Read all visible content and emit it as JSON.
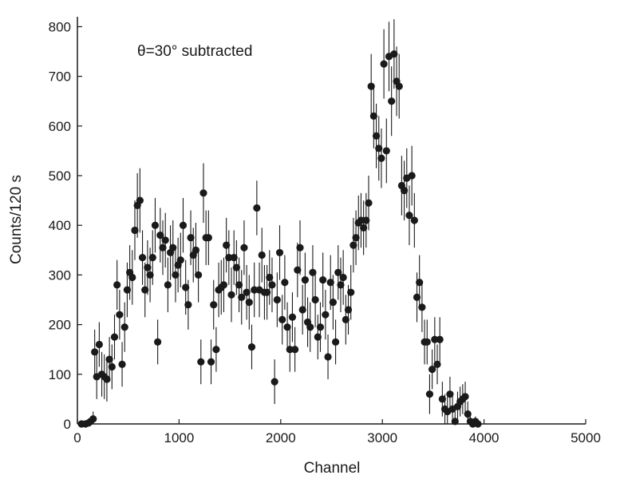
{
  "chart_data": {
    "type": "scatter",
    "annotation": "θ=30° subtracted",
    "xlabel": "Channel",
    "ylabel": "Counts/120 s",
    "xlim": [
      0,
      5000
    ],
    "ylim": [
      0,
      820
    ],
    "xticks": [
      0,
      1000,
      2000,
      3000,
      4000,
      5000
    ],
    "yticks": [
      0,
      100,
      200,
      300,
      400,
      500,
      600,
      700,
      800
    ],
    "grid": false,
    "marker_color": "#1a1a1a",
    "series": [
      {
        "points": [
          [
            40,
            0,
            5
          ],
          [
            80,
            0,
            5
          ],
          [
            110,
            2,
            8
          ],
          [
            130,
            5,
            10
          ],
          [
            155,
            10,
            15
          ],
          [
            170,
            145,
            45
          ],
          [
            190,
            95,
            45
          ],
          [
            215,
            160,
            45
          ],
          [
            240,
            100,
            45
          ],
          [
            265,
            95,
            45
          ],
          [
            290,
            90,
            45
          ],
          [
            315,
            130,
            45
          ],
          [
            340,
            115,
            45
          ],
          [
            365,
            175,
            45
          ],
          [
            390,
            280,
            50
          ],
          [
            415,
            220,
            50
          ],
          [
            440,
            120,
            45
          ],
          [
            465,
            195,
            50
          ],
          [
            490,
            270,
            55
          ],
          [
            515,
            305,
            55
          ],
          [
            540,
            295,
            55
          ],
          [
            565,
            390,
            60
          ],
          [
            590,
            440,
            65
          ],
          [
            615,
            450,
            65
          ],
          [
            640,
            335,
            55
          ],
          [
            665,
            270,
            55
          ],
          [
            690,
            315,
            55
          ],
          [
            715,
            300,
            55
          ],
          [
            740,
            335,
            55
          ],
          [
            765,
            400,
            55
          ],
          [
            790,
            165,
            45
          ],
          [
            815,
            380,
            55
          ],
          [
            840,
            355,
            55
          ],
          [
            865,
            370,
            55
          ],
          [
            890,
            280,
            55
          ],
          [
            915,
            345,
            55
          ],
          [
            940,
            355,
            55
          ],
          [
            965,
            300,
            55
          ],
          [
            990,
            320,
            55
          ],
          [
            1015,
            330,
            55
          ],
          [
            1040,
            400,
            55
          ],
          [
            1065,
            275,
            55
          ],
          [
            1090,
            240,
            50
          ],
          [
            1115,
            375,
            55
          ],
          [
            1140,
            340,
            55
          ],
          [
            1165,
            350,
            55
          ],
          [
            1190,
            300,
            55
          ],
          [
            1215,
            125,
            45
          ],
          [
            1240,
            465,
            60
          ],
          [
            1265,
            375,
            55
          ],
          [
            1290,
            375,
            55
          ],
          [
            1315,
            125,
            45
          ],
          [
            1340,
            240,
            50
          ],
          [
            1365,
            150,
            45
          ],
          [
            1390,
            270,
            55
          ],
          [
            1415,
            275,
            55
          ],
          [
            1440,
            280,
            55
          ],
          [
            1465,
            360,
            55
          ],
          [
            1490,
            335,
            55
          ],
          [
            1515,
            260,
            55
          ],
          [
            1540,
            335,
            55
          ],
          [
            1565,
            315,
            55
          ],
          [
            1590,
            280,
            55
          ],
          [
            1615,
            255,
            55
          ],
          [
            1640,
            355,
            55
          ],
          [
            1665,
            265,
            55
          ],
          [
            1690,
            245,
            55
          ],
          [
            1715,
            155,
            45
          ],
          [
            1740,
            270,
            55
          ],
          [
            1765,
            435,
            55
          ],
          [
            1790,
            270,
            55
          ],
          [
            1815,
            340,
            55
          ],
          [
            1840,
            265,
            55
          ],
          [
            1865,
            265,
            55
          ],
          [
            1890,
            295,
            55
          ],
          [
            1915,
            280,
            55
          ],
          [
            1940,
            85,
            45
          ],
          [
            1965,
            250,
            55
          ],
          [
            1990,
            345,
            55
          ],
          [
            2015,
            210,
            50
          ],
          [
            2040,
            285,
            55
          ],
          [
            2065,
            195,
            50
          ],
          [
            2090,
            150,
            45
          ],
          [
            2115,
            215,
            50
          ],
          [
            2140,
            150,
            45
          ],
          [
            2165,
            310,
            55
          ],
          [
            2190,
            355,
            55
          ],
          [
            2215,
            230,
            50
          ],
          [
            2240,
            290,
            55
          ],
          [
            2265,
            205,
            50
          ],
          [
            2290,
            195,
            50
          ],
          [
            2315,
            305,
            55
          ],
          [
            2340,
            250,
            55
          ],
          [
            2365,
            175,
            45
          ],
          [
            2390,
            195,
            50
          ],
          [
            2415,
            290,
            55
          ],
          [
            2440,
            220,
            50
          ],
          [
            2465,
            135,
            45
          ],
          [
            2490,
            285,
            55
          ],
          [
            2515,
            245,
            55
          ],
          [
            2540,
            165,
            45
          ],
          [
            2565,
            305,
            55
          ],
          [
            2590,
            280,
            55
          ],
          [
            2615,
            295,
            55
          ],
          [
            2640,
            210,
            50
          ],
          [
            2665,
            230,
            50
          ],
          [
            2690,
            265,
            55
          ],
          [
            2715,
            360,
            55
          ],
          [
            2740,
            375,
            55
          ],
          [
            2765,
            405,
            55
          ],
          [
            2790,
            410,
            55
          ],
          [
            2815,
            395,
            55
          ],
          [
            2840,
            410,
            55
          ],
          [
            2865,
            445,
            55
          ],
          [
            2890,
            680,
            65
          ],
          [
            2915,
            620,
            65
          ],
          [
            2940,
            580,
            65
          ],
          [
            2965,
            555,
            65
          ],
          [
            2990,
            535,
            60
          ],
          [
            3015,
            725,
            70
          ],
          [
            3040,
            550,
            65
          ],
          [
            3065,
            740,
            70
          ],
          [
            3090,
            650,
            70
          ],
          [
            3115,
            745,
            70
          ],
          [
            3140,
            690,
            70
          ],
          [
            3165,
            680,
            65
          ],
          [
            3190,
            480,
            60
          ],
          [
            3215,
            470,
            60
          ],
          [
            3240,
            495,
            60
          ],
          [
            3265,
            420,
            60
          ],
          [
            3290,
            500,
            60
          ],
          [
            3315,
            410,
            55
          ],
          [
            3340,
            255,
            50
          ],
          [
            3365,
            285,
            55
          ],
          [
            3390,
            235,
            50
          ],
          [
            3415,
            165,
            45
          ],
          [
            3440,
            165,
            45
          ],
          [
            3465,
            60,
            40
          ],
          [
            3490,
            110,
            40
          ],
          [
            3515,
            170,
            45
          ],
          [
            3540,
            120,
            40
          ],
          [
            3565,
            170,
            45
          ],
          [
            3590,
            50,
            35
          ],
          [
            3615,
            30,
            30
          ],
          [
            3640,
            25,
            30
          ],
          [
            3665,
            60,
            35
          ],
          [
            3690,
            30,
            30
          ],
          [
            3715,
            5,
            20
          ],
          [
            3740,
            35,
            30
          ],
          [
            3765,
            45,
            30
          ],
          [
            3790,
            50,
            30
          ],
          [
            3815,
            55,
            30
          ],
          [
            3840,
            20,
            25
          ],
          [
            3865,
            5,
            15
          ],
          [
            3890,
            0,
            10
          ],
          [
            3915,
            5,
            10
          ],
          [
            3940,
            0,
            10
          ]
        ]
      }
    ]
  }
}
